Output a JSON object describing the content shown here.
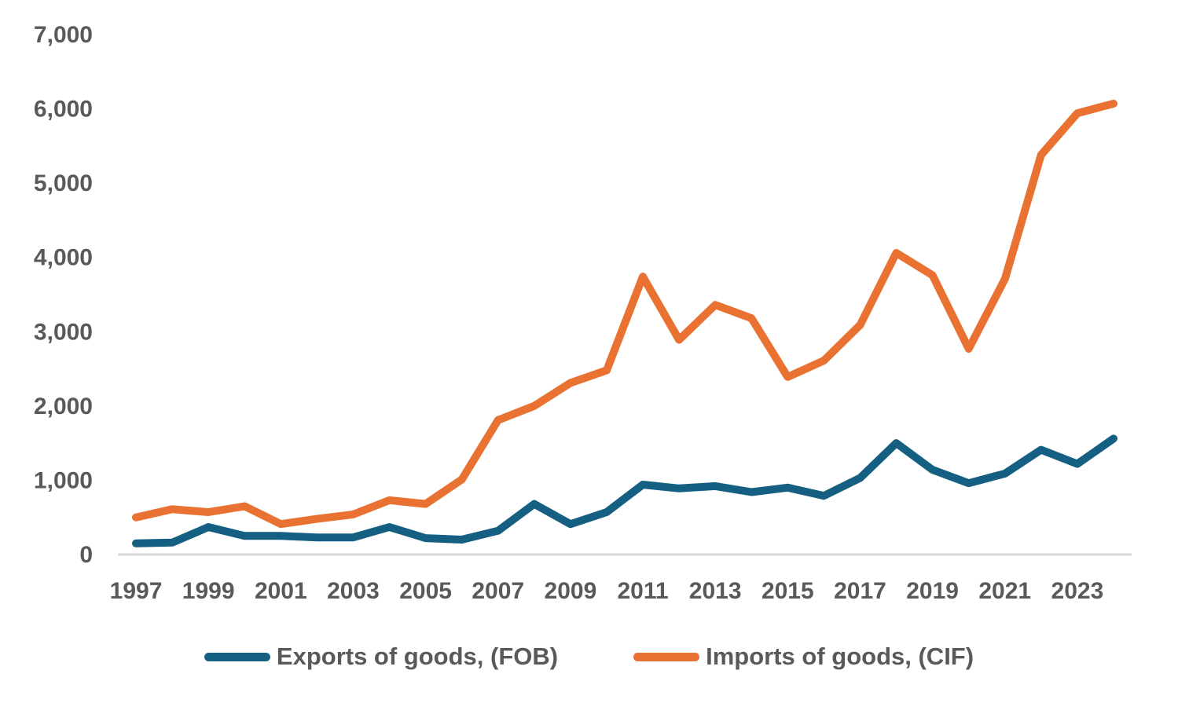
{
  "chart_data": {
    "type": "line",
    "title": "",
    "xlabel": "",
    "ylabel": "",
    "x": [
      1997,
      1998,
      1999,
      2000,
      2001,
      2002,
      2003,
      2004,
      2005,
      2006,
      2007,
      2008,
      2009,
      2010,
      2011,
      2012,
      2013,
      2014,
      2015,
      2016,
      2017,
      2018,
      2019,
      2020,
      2021,
      2022,
      2023,
      2024
    ],
    "series": [
      {
        "name": "Exports of goods, (FOB)",
        "color": "#156082",
        "values": [
          140,
          150,
          360,
          240,
          240,
          220,
          220,
          360,
          210,
          190,
          310,
          670,
          400,
          560,
          930,
          880,
          910,
          830,
          890,
          780,
          1020,
          1490,
          1130,
          950,
          1080,
          1400,
          1210,
          1550
        ]
      },
      {
        "name": "Imports of goods, (CIF)",
        "color": "#E97132",
        "values": [
          490,
          600,
          560,
          640,
          400,
          470,
          530,
          720,
          670,
          1000,
          1800,
          1990,
          2300,
          2470,
          3730,
          2880,
          3350,
          3170,
          2380,
          2600,
          3080,
          4050,
          3750,
          2760,
          3700,
          5370,
          5930,
          6060
        ]
      }
    ],
    "ylim": [
      0,
      7000
    ],
    "y_ticks": [
      0,
      1000,
      2000,
      3000,
      4000,
      5000,
      6000,
      7000
    ],
    "y_tick_labels": [
      "0",
      "1,000",
      "2,000",
      "3,000",
      "4,000",
      "5,000",
      "6,000",
      "7,000"
    ],
    "x_tick_years": [
      1997,
      1999,
      2001,
      2003,
      2005,
      2007,
      2009,
      2011,
      2013,
      2015,
      2017,
      2019,
      2021,
      2023
    ],
    "x_tick_labels": [
      "1997",
      "1999",
      "2001",
      "2003",
      "2005",
      "2007",
      "2009",
      "2011",
      "2013",
      "2015",
      "2017",
      "2019",
      "2021",
      "2023"
    ],
    "grid": false,
    "legend_position": "bottom"
  },
  "colors": {
    "background": "#FFFFFF",
    "axis_line": "#D9D9D9",
    "tick_label": "#595959",
    "exports_line": "#156082",
    "imports_line": "#E97132"
  },
  "legend": {
    "items": [
      {
        "label": "Exports of goods, (FOB)",
        "color": "#156082"
      },
      {
        "label": "Imports of goods, (CIF)",
        "color": "#E97132"
      }
    ]
  }
}
